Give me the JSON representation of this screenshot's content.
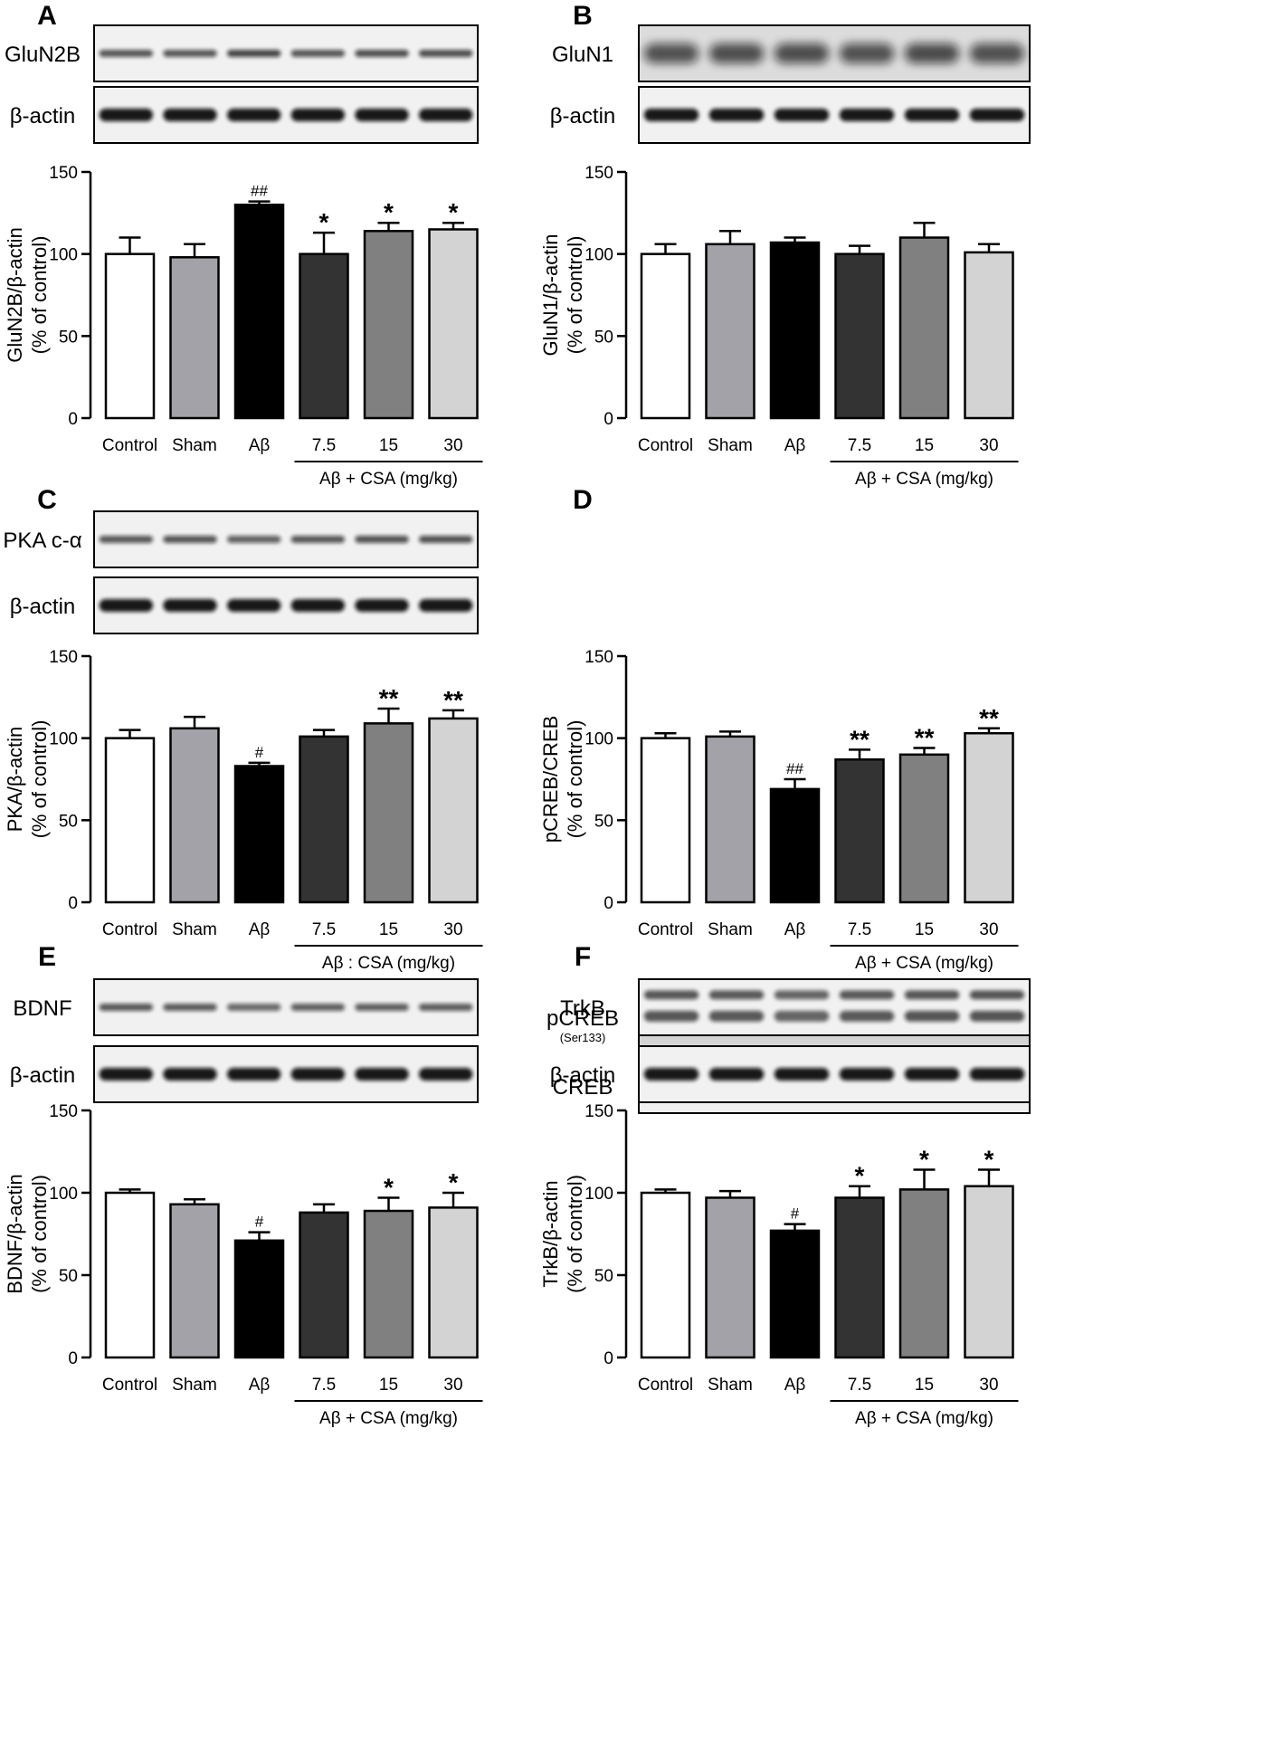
{
  "figure": {
    "group_colors": [
      "#ffffff",
      "#a2a2a8",
      "#000000",
      "#333333",
      "#808080",
      "#d3d3d3"
    ],
    "categories": [
      "Control",
      "Sham",
      "Aβ",
      "7.5",
      "15",
      "30"
    ]
  },
  "chart_data": [
    {
      "type": "bar",
      "panel_label": "A",
      "blot_labels": [
        {
          "text": "GluN2B",
          "sub": ""
        },
        {
          "text": "β-actin",
          "sub": ""
        }
      ],
      "categories": [
        "Control",
        "Sham",
        "Aβ",
        "7.5",
        "15",
        "30"
      ],
      "values": [
        100,
        98,
        130,
        100,
        114,
        115
      ],
      "errors": [
        10,
        8,
        2,
        13,
        5,
        4
      ],
      "significance": [
        "",
        "",
        "##",
        "*",
        "*",
        "*"
      ],
      "ylabel": "GluN2B/β-actin",
      "ylabel_unit": "(% of control)",
      "yticks": [
        "0",
        "50",
        "100",
        "150"
      ],
      "ylim": [
        0,
        150
      ],
      "group_label": "Aβ + CSA (mg/kg)"
    },
    {
      "type": "bar",
      "panel_label": "B",
      "blot_labels": [
        {
          "text": "GluN1",
          "sub": ""
        },
        {
          "text": "β-actin",
          "sub": ""
        }
      ],
      "categories": [
        "Control",
        "Sham",
        "Aβ",
        "7.5",
        "15",
        "30"
      ],
      "values": [
        100,
        106,
        107,
        100,
        110,
        101
      ],
      "errors": [
        6,
        8,
        3,
        5,
        9,
        5
      ],
      "significance": [
        "",
        "",
        "",
        "",
        "",
        ""
      ],
      "ylabel": "GluN1/β-actin",
      "ylabel_unit": "(% of control)",
      "yticks": [
        "0",
        "50",
        "100",
        "150"
      ],
      "ylim": [
        0,
        150
      ],
      "group_label": "Aβ + CSA (mg/kg)"
    },
    {
      "type": "bar",
      "panel_label": "C",
      "blot_labels": [
        {
          "text": "PKA c-α",
          "sub": ""
        },
        {
          "text": "β-actin",
          "sub": ""
        }
      ],
      "categories": [
        "Control",
        "Sham",
        "Aβ",
        "7.5",
        "15",
        "30"
      ],
      "values": [
        100,
        106,
        83,
        101,
        109,
        112
      ],
      "errors": [
        5,
        7,
        2,
        4,
        9,
        5
      ],
      "significance": [
        "",
        "",
        "#",
        "",
        "**",
        "**"
      ],
      "ylabel": "PKA/β-actin",
      "ylabel_unit": "(% of control)",
      "yticks": [
        "0",
        "50",
        "100",
        "150"
      ],
      "ylim": [
        0,
        150
      ],
      "group_label": "Aβ : CSA (mg/kg)"
    },
    {
      "type": "bar",
      "panel_label": "D",
      "blot_labels": [
        {
          "text": "pCREB",
          "sub": "(Ser133)"
        },
        {
          "text": "CREB",
          "sub": ""
        }
      ],
      "categories": [
        "Control",
        "Sham",
        "Aβ",
        "7.5",
        "15",
        "30"
      ],
      "values": [
        100,
        101,
        69,
        87,
        90,
        103
      ],
      "errors": [
        3,
        3,
        6,
        6,
        4,
        3
      ],
      "significance": [
        "",
        "",
        "##",
        "**",
        "**",
        "**"
      ],
      "ylabel": "pCREB/CREB",
      "ylabel_unit": "(% of control)",
      "yticks": [
        "0",
        "50",
        "100",
        "150"
      ],
      "ylim": [
        0,
        150
      ],
      "group_label": "Aβ + CSA (mg/kg)"
    },
    {
      "type": "bar",
      "panel_label": "E",
      "blot_labels": [
        {
          "text": "BDNF",
          "sub": ""
        },
        {
          "text": "β-actin",
          "sub": ""
        }
      ],
      "categories": [
        "Control",
        "Sham",
        "Aβ",
        "7.5",
        "15",
        "30"
      ],
      "values": [
        100,
        93,
        71,
        88,
        89,
        91
      ],
      "errors": [
        2,
        3,
        5,
        5,
        8,
        9
      ],
      "significance": [
        "",
        "",
        "#",
        "",
        "*",
        "*"
      ],
      "ylabel": "BDNF/β-actin",
      "ylabel_unit": "(% of control)",
      "yticks": [
        "0",
        "50",
        "100",
        "150"
      ],
      "ylim": [
        0,
        150
      ],
      "group_label": "Aβ + CSA (mg/kg)"
    },
    {
      "type": "bar",
      "panel_label": "F",
      "blot_labels": [
        {
          "text": "TrkB",
          "sub": ""
        },
        {
          "text": "β-actin",
          "sub": ""
        }
      ],
      "categories": [
        "Control",
        "Sham",
        "Aβ",
        "7.5",
        "15",
        "30"
      ],
      "values": [
        100,
        97,
        77,
        97,
        102,
        104
      ],
      "errors": [
        2,
        4,
        4,
        7,
        12,
        10
      ],
      "significance": [
        "",
        "",
        "#",
        "*",
        "*",
        "*"
      ],
      "ylabel": "TrkB/β-actin",
      "ylabel_unit": "(% of control)",
      "yticks": [
        "0",
        "50",
        "100",
        "150"
      ],
      "ylim": [
        0,
        150
      ],
      "group_label": "Aβ + CSA (mg/kg)"
    }
  ]
}
